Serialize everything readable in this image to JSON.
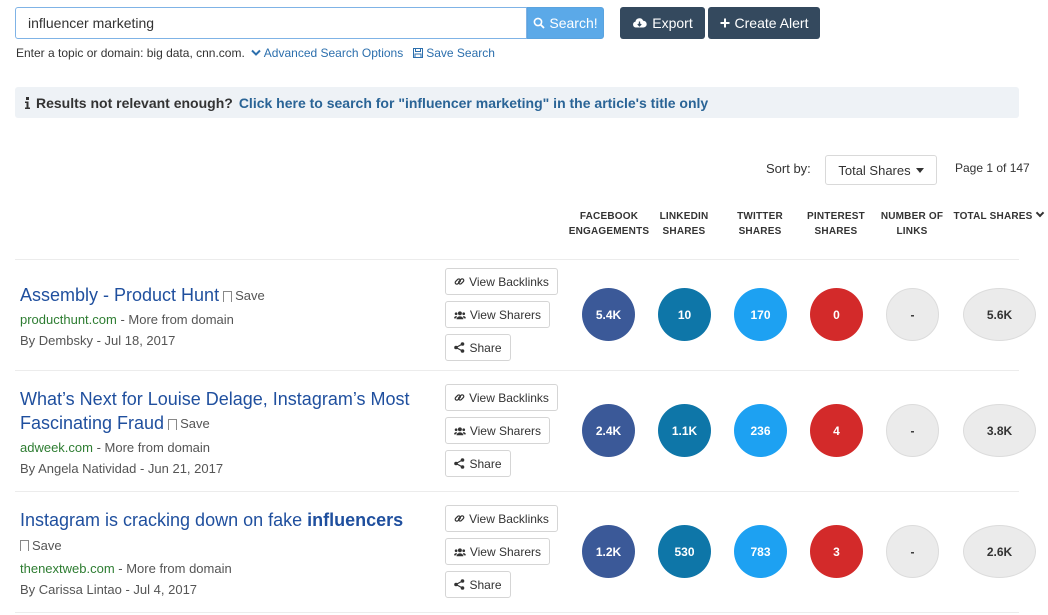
{
  "search": {
    "value": "influencer marketing",
    "button_label": "Search!",
    "export_label": "Export",
    "create_alert_label": "Create Alert"
  },
  "hint": {
    "text": "Enter a topic or domain: big data, cnn.com.",
    "advanced_label": "Advanced Search Options",
    "save_search_label": "Save Search"
  },
  "notice": {
    "text": "Results not relevant enough?",
    "link": "Click here to search for \"influencer marketing\" in the article's title only"
  },
  "sort": {
    "label": "Sort by:",
    "selected": "Total Shares",
    "page_info": "Page 1 of 147"
  },
  "columns": [
    {
      "line1": "FACEBOOK",
      "line2": "ENGAGEMENTS"
    },
    {
      "line1": "LINKEDIN",
      "line2": "SHARES"
    },
    {
      "line1": "TWITTER",
      "line2": "SHARES"
    },
    {
      "line1": "PINTEREST",
      "line2": "SHARES"
    },
    {
      "line1": "NUMBER OF",
      "line2": "LINKS"
    },
    {
      "line1": "TOTAL SHARES",
      "line2": ""
    }
  ],
  "actions": {
    "view_backlinks": "View Backlinks",
    "view_sharers": "View Sharers",
    "share": "Share",
    "save": "Save"
  },
  "results": [
    {
      "title": "Assembly - Product Hunt",
      "domain": "producthunt.com",
      "more": " - More from domain",
      "byline": "By Dembsky - Jul 18, 2017",
      "facebook": "5.4K",
      "linkedin": "10",
      "twitter": "170",
      "pinterest": "0",
      "links": "-",
      "total": "5.6K"
    },
    {
      "title_line1": "What’s Next for Louise Delage, Instagram’s Most",
      "title_line2": "Fascinating Fraud",
      "domain": "adweek.com",
      "more": " - More from domain",
      "byline": "By Angela Natividad - Jun 21, 2017",
      "facebook": "2.4K",
      "linkedin": "1.1K",
      "twitter": "236",
      "pinterest": "4",
      "links": "-",
      "total": "3.8K"
    },
    {
      "title_pre": "Instagram is cracking down on fake ",
      "title_bold": "influencers",
      "domain": "thenextweb.com",
      "more": " - More from domain",
      "byline": "By Carissa Lintao - Jul 4, 2017",
      "facebook": "1.2K",
      "linkedin": "530",
      "twitter": "783",
      "pinterest": "3",
      "links": "-",
      "total": "2.6K"
    }
  ],
  "colors": {
    "facebook": "#3b5998",
    "linkedin": "#0e76a8",
    "twitter": "#1da1f2",
    "pinterest": "#d32a2a",
    "neutral": "#ebebeb",
    "link": "#1f4f9e",
    "domain": "#2e7d32",
    "dark_button": "#34495e",
    "search_button": "#5ba9e8"
  }
}
